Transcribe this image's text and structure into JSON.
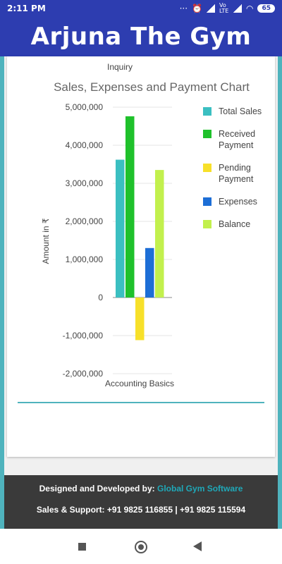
{
  "status_bar": {
    "time": "2:11 PM",
    "network_label": "Vo LTE",
    "battery": "65"
  },
  "header": {
    "title": "Arjuna The Gym"
  },
  "section_above": {
    "label": "Inquiry"
  },
  "chart_data": {
    "type": "bar",
    "title": "Sales, Expenses and Payment Chart",
    "xlabel": "",
    "ylabel": "Amount in ₹",
    "categories": [
      "Accounting Basics"
    ],
    "ylim": [
      -2000000,
      5000000
    ],
    "yticks": [
      5000000,
      4000000,
      3000000,
      2000000,
      1000000,
      0,
      -1000000,
      -2000000
    ],
    "ytick_labels": [
      "5,000,000",
      "4,000,000",
      "3,000,000",
      "2,000,000",
      "1,000,000",
      "0",
      "-1,000,000",
      "-2,000,000"
    ],
    "grid": true,
    "legend_position": "right",
    "series": [
      {
        "name": "Total Sales",
        "values": [
          3620000
        ],
        "color": "#3bbfc1"
      },
      {
        "name": "Received Payment",
        "values": [
          4760000
        ],
        "color": "#1fc12b"
      },
      {
        "name": "Pending Payment",
        "values": [
          -1120000
        ],
        "color": "#f7e02a"
      },
      {
        "name": "Expenses",
        "values": [
          1300000
        ],
        "color": "#1d6ed6"
      },
      {
        "name": "Balance",
        "values": [
          3350000
        ],
        "color": "#c2f04d"
      }
    ]
  },
  "legend": [
    {
      "line1": "Total Sales",
      "line2": ""
    },
    {
      "line1": "Received",
      "line2": "Payment"
    },
    {
      "line1": "Pending",
      "line2": "Payment"
    },
    {
      "line1": "Expenses",
      "line2": ""
    },
    {
      "line1": "Balance",
      "line2": ""
    }
  ],
  "footer": {
    "designed_label": "Designed and Developed by:",
    "designed_link": "Global Gym Software",
    "support": "Sales & Support: +91 9825 116855 | +91 9825 115594"
  },
  "icons": {
    "alarm": "alarm-icon",
    "signal": "signal-icon",
    "wifi": "wifi-icon",
    "battery": "battery-icon",
    "nav_recent": "recent-apps-icon",
    "nav_home": "home-icon",
    "nav_back": "back-icon"
  }
}
